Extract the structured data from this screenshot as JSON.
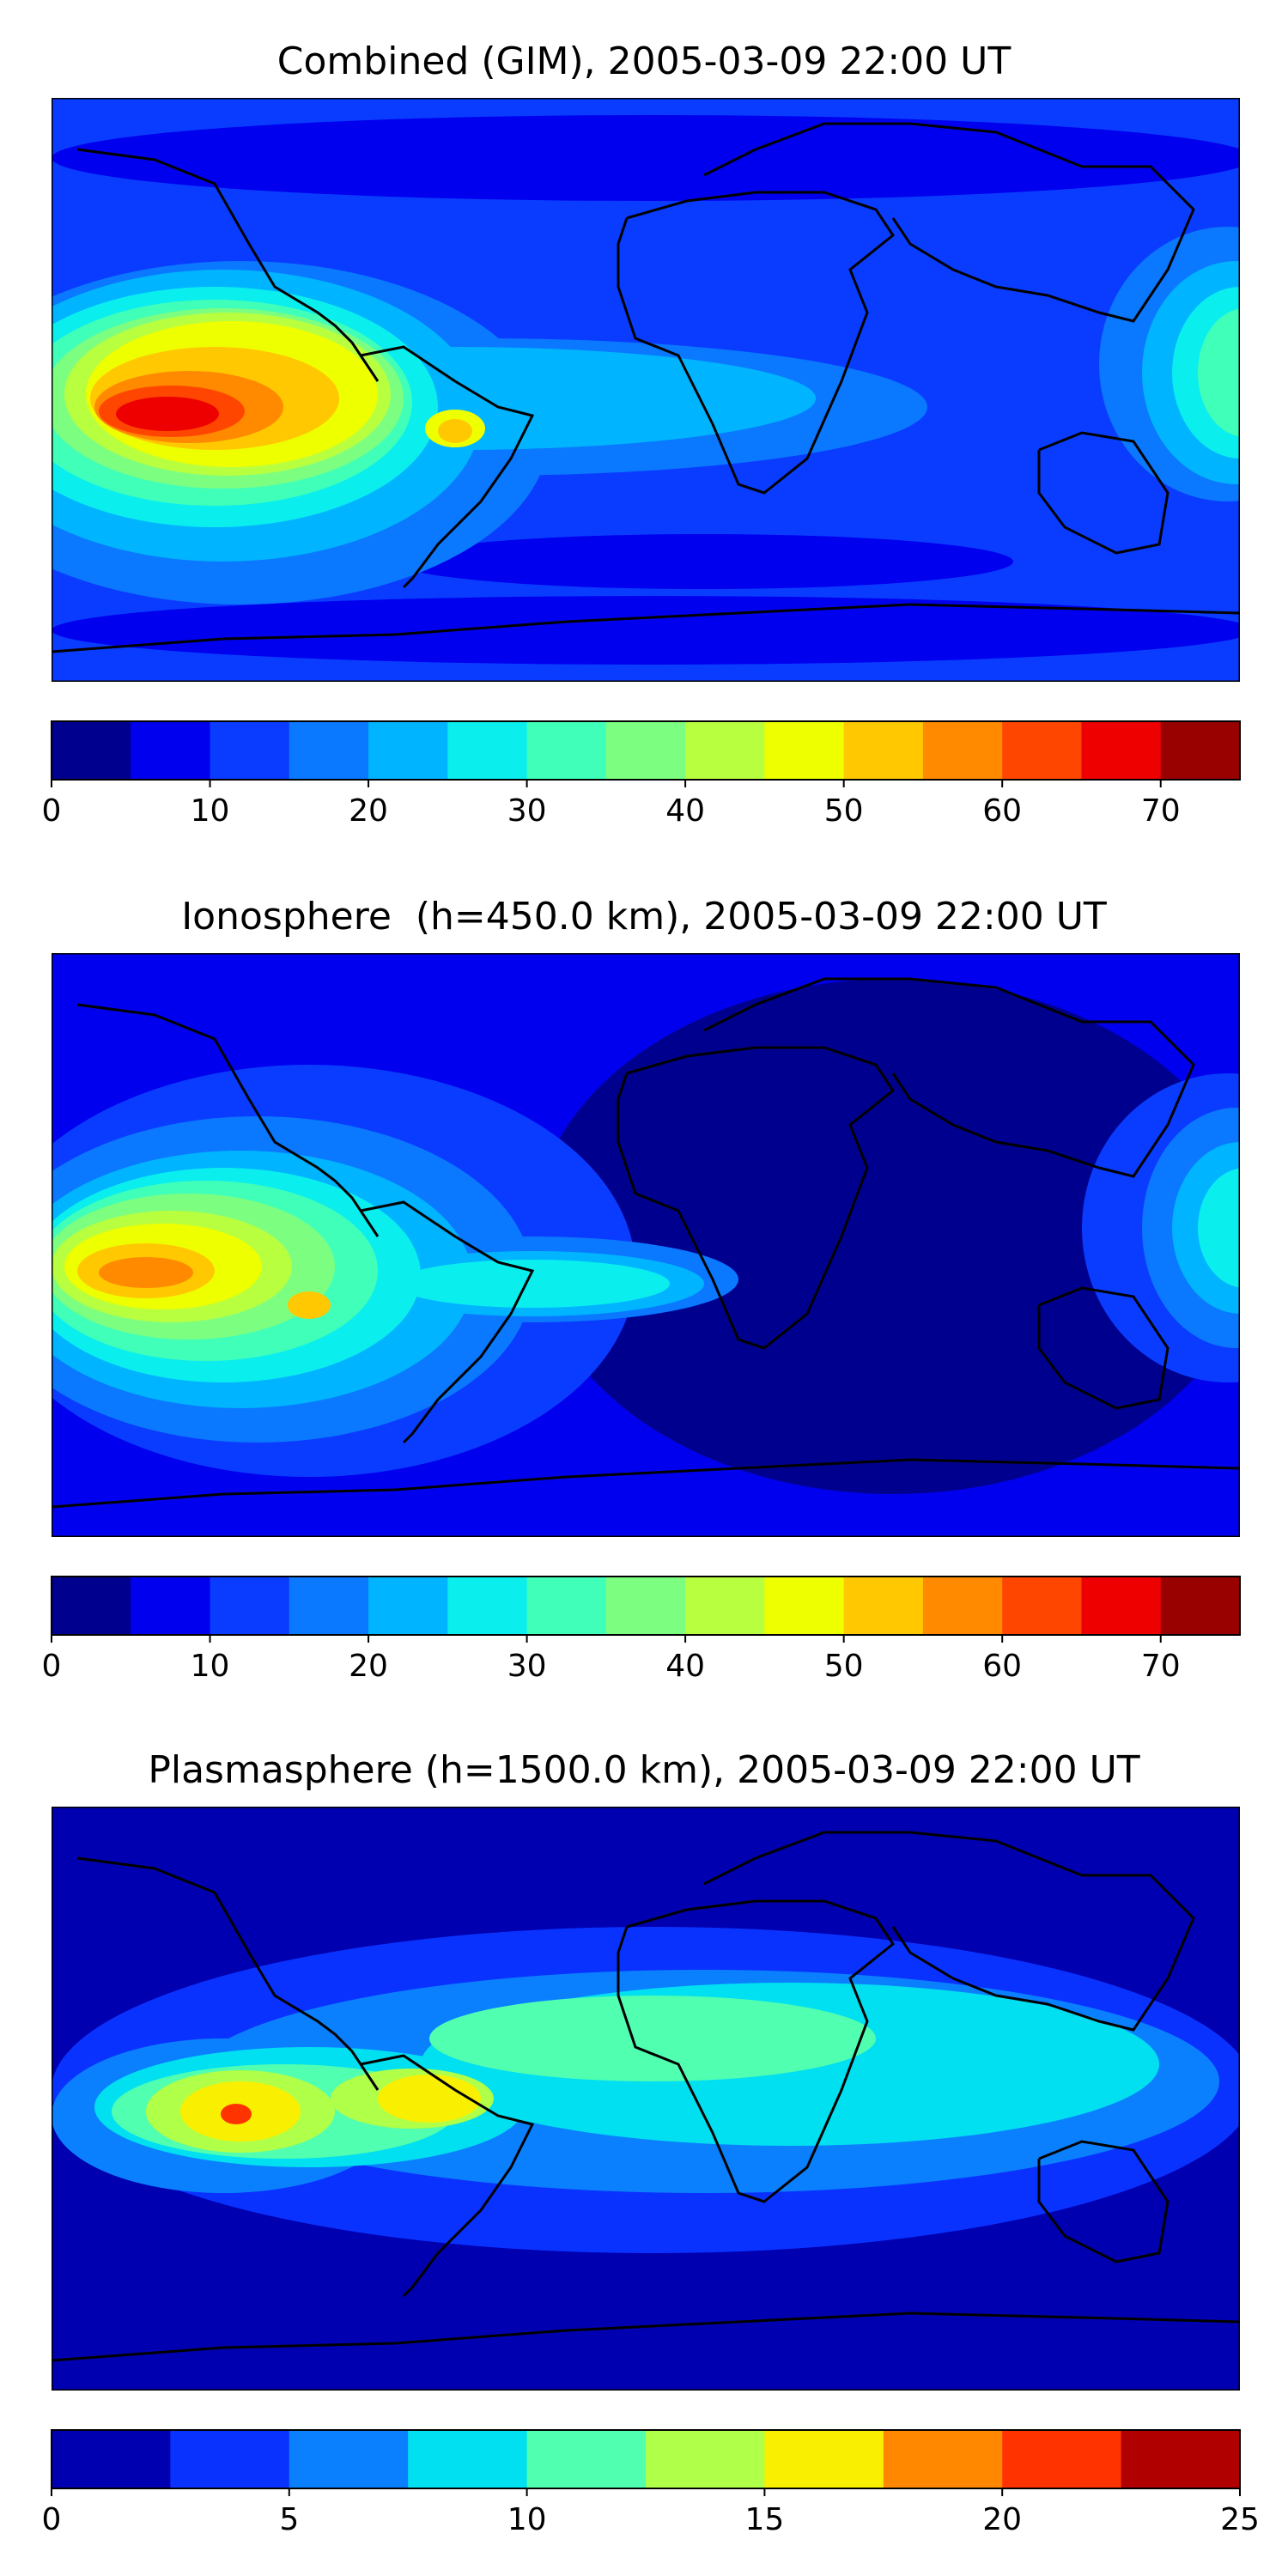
{
  "panels": [
    {
      "title": "Combined (GIM), 2005-03-09 22:00 UT",
      "colorbar": {
        "ticks": [
          "0",
          "10",
          "20",
          "30",
          "40",
          "50",
          "60",
          "70"
        ],
        "colors": [
          "#00008f",
          "#0000ee",
          "#0a3cff",
          "#0a78ff",
          "#00b4ff",
          "#0aeeee",
          "#40ffb8",
          "#7cff80",
          "#b8ff40",
          "#eeff00",
          "#ffc800",
          "#ff8a00",
          "#ff4600",
          "#ee0000",
          "#990000"
        ]
      }
    },
    {
      "title": "Ionosphere  (h=450.0 km), 2005-03-09 22:00 UT",
      "colorbar": {
        "ticks": [
          "0",
          "10",
          "20",
          "30",
          "40",
          "50",
          "60",
          "70"
        ],
        "colors": [
          "#00008f",
          "#0000ee",
          "#0a3cff",
          "#0a78ff",
          "#00b4ff",
          "#0aeeee",
          "#40ffb8",
          "#7cff80",
          "#b8ff40",
          "#eeff00",
          "#ffc800",
          "#ff8a00",
          "#ff4600",
          "#ee0000",
          "#990000"
        ]
      }
    },
    {
      "title": "Plasmasphere (h=1500.0 km), 2005-03-09 22:00 UT",
      "colorbar": {
        "ticks": [
          "0",
          "5",
          "10",
          "15",
          "20",
          "25"
        ],
        "colors": [
          "#0000b0",
          "#0a32ff",
          "#0a80ff",
          "#00e0f0",
          "#50ffb0",
          "#b0ff48",
          "#f8f000",
          "#ff8800",
          "#ff3300",
          "#b00000"
        ]
      }
    }
  ]
}
